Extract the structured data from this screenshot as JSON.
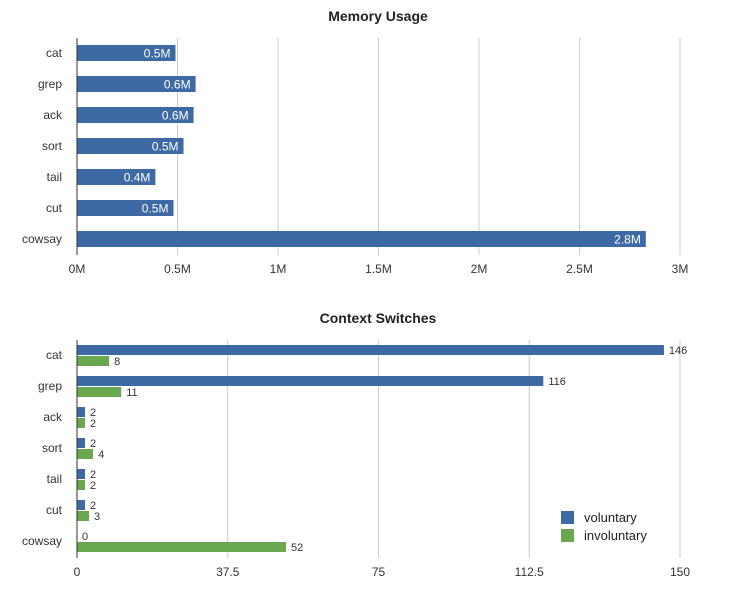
{
  "chart_data": [
    {
      "type": "bar",
      "orientation": "horizontal",
      "title": "Memory Usage",
      "categories": [
        "cat",
        "grep",
        "ack",
        "sort",
        "tail",
        "cut",
        "cowsay"
      ],
      "series": [
        {
          "values": [
            0.49,
            0.59,
            0.58,
            0.53,
            0.39,
            0.48,
            2.83
          ],
          "labels": [
            "0.5M",
            "0.6M",
            "0.6M",
            "0.5M",
            "0.4M",
            "0.5M",
            "2.8M"
          ],
          "color": "#3d6aa3"
        }
      ],
      "xticks": [
        0,
        0.5,
        1,
        1.5,
        2,
        2.5,
        3
      ],
      "xtick_labels": [
        "0M",
        "0.5M",
        "1M",
        "1.5M",
        "2M",
        "2.5M",
        "3M"
      ],
      "xlim": [
        0,
        3
      ],
      "grid": true
    },
    {
      "type": "bar",
      "orientation": "horizontal",
      "title": "Context Switches",
      "categories": [
        "cat",
        "grep",
        "ack",
        "sort",
        "tail",
        "cut",
        "cowsay"
      ],
      "series": [
        {
          "name": "voluntary",
          "values": [
            146,
            116,
            2,
            2,
            2,
            2,
            0
          ],
          "color": "#3d6aa3"
        },
        {
          "name": "involuntary",
          "values": [
            8,
            11,
            2,
            4,
            2,
            3,
            52
          ],
          "color": "#6aa84f"
        }
      ],
      "xticks": [
        0,
        37.5,
        75,
        112.5,
        150
      ],
      "xtick_labels": [
        "0",
        "37.5",
        "75",
        "112.5",
        "150"
      ],
      "xlim": [
        0,
        150
      ],
      "grid": true,
      "legend": "bottom-right"
    }
  ]
}
